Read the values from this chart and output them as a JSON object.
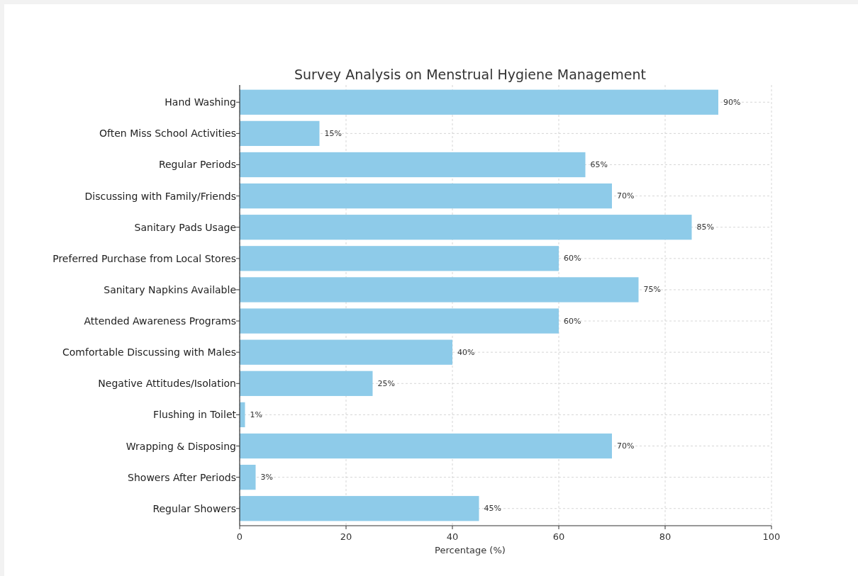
{
  "chart_data": {
    "type": "bar",
    "orientation": "horizontal",
    "title": "Survey Analysis on Menstrual Hygiene Management",
    "xlabel": "Percentage (%)",
    "categories": [
      "Hand Washing",
      "Often Miss School Activities",
      "Regular Periods",
      "Discussing with Family/Friends",
      "Sanitary Pads Usage",
      "Preferred Purchase from Local Stores",
      "Sanitary Napkins Available",
      "Attended Awareness Programs",
      "Comfortable Discussing with Males",
      "Negative Attitudes/Isolation",
      "Flushing in Toilet",
      "Wrapping & Disposing",
      "Showers After Periods",
      "Regular Showers"
    ],
    "values": [
      90,
      15,
      65,
      70,
      85,
      60,
      75,
      60,
      40,
      25,
      1,
      70,
      3,
      45
    ],
    "value_labels": [
      "90%",
      "15%",
      "65%",
      "70%",
      "85%",
      "60%",
      "75%",
      "60%",
      "40%",
      "25%",
      "1%",
      "70%",
      "3%",
      "45%"
    ],
    "color": "#8ecbe9",
    "xlim": [
      0,
      100
    ],
    "xticks": [
      0,
      20,
      40,
      60,
      80,
      100
    ],
    "grid": true
  }
}
